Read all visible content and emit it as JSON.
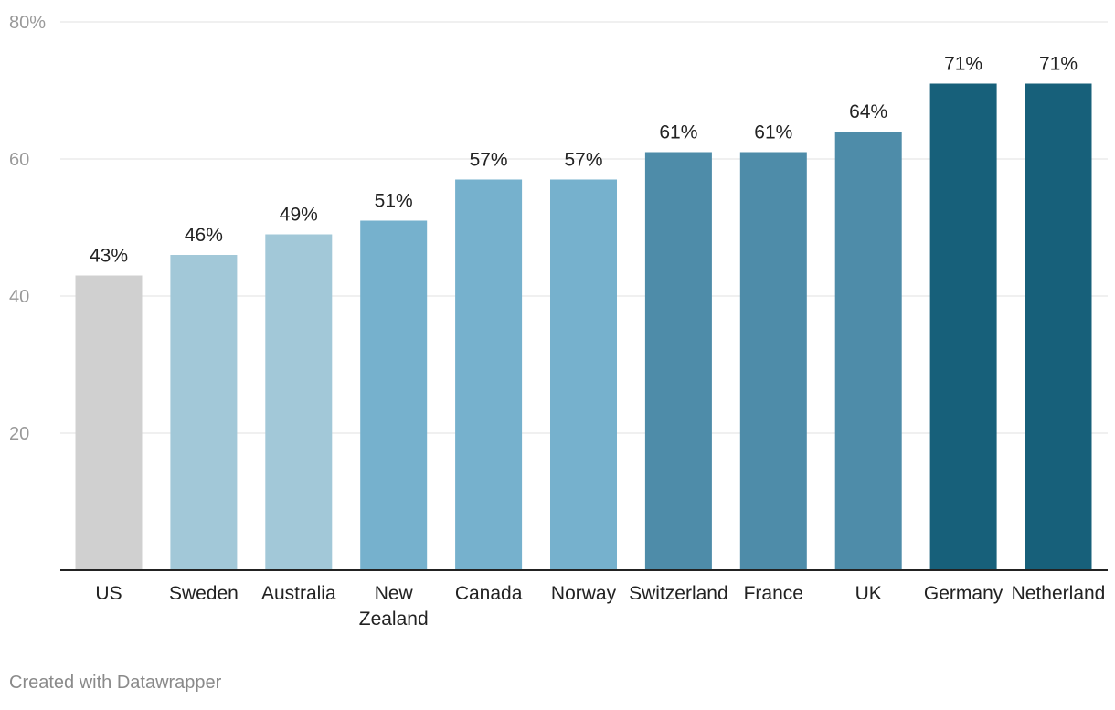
{
  "chart_data": {
    "type": "bar",
    "categories": [
      "US",
      "Sweden",
      "Australia",
      "New Zealand",
      "Canada",
      "Norway",
      "Switzerland",
      "France",
      "UK",
      "Germany",
      "Netherland"
    ],
    "values": [
      43,
      46,
      49,
      51,
      57,
      57,
      61,
      61,
      64,
      71,
      71
    ],
    "value_labels": [
      "43%",
      "46%",
      "49%",
      "51%",
      "57%",
      "57%",
      "61%",
      "61%",
      "64%",
      "71%",
      "71%"
    ],
    "bar_colors": [
      "#d0d0d0",
      "#a2c8d8",
      "#a2c8d8",
      "#76b1cd",
      "#76b1cd",
      "#76b1cd",
      "#4e8ca9",
      "#4e8ca9",
      "#4e8ca9",
      "#17607a",
      "#17607a"
    ],
    "ylim": [
      0,
      80
    ],
    "y_ticks": [
      20,
      40,
      60,
      80
    ],
    "y_tick_labels": [
      "20",
      "40",
      "60",
      "80%"
    ],
    "grid": true,
    "title": "",
    "xlabel": "",
    "ylabel": ""
  },
  "footer": {
    "credit": "Created with Datawrapper"
  },
  "colors": {
    "grid": "#e2e2e2",
    "axis": "#222222",
    "tick_text": "#999999",
    "label_text": "#222222"
  }
}
